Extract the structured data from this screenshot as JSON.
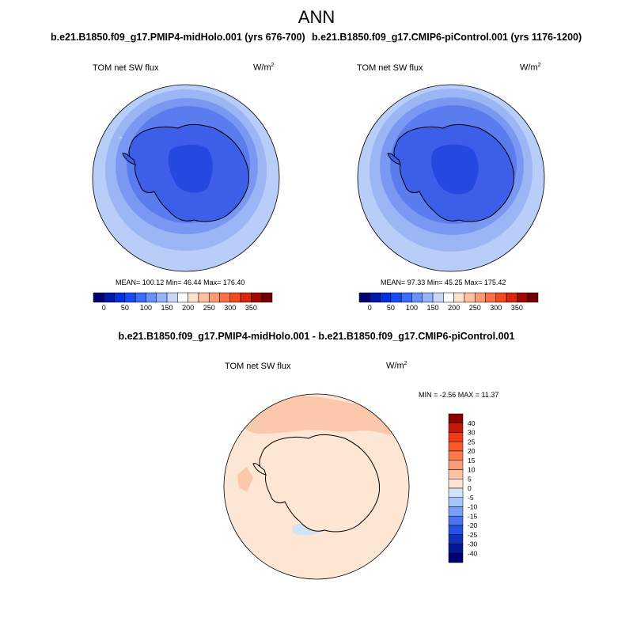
{
  "main_title": "ANN",
  "panels": [
    {
      "title": "b.e21.B1850.f09_g17.PMIP4-midHolo.001 (yrs 676-700)",
      "variable": "TOM net SW flux",
      "units_base": "W/m",
      "units_exp": "2",
      "stats": "MEAN= 100.12  Min=  46.44  Max= 176.40"
    },
    {
      "title": "b.e21.B1850.f09_g17.CMIP6-piControl.001 (yrs 1176-1200)",
      "variable": "TOM net SW flux",
      "units_base": "W/m",
      "units_exp": "2",
      "stats": "MEAN=  97.33  Min=  45.25  Max= 175.42"
    }
  ],
  "difference": {
    "title": "b.e21.B1850.f09_g17.PMIP4-midHolo.001 - b.e21.B1850.f09_g17.CMIP6-piControl.001",
    "variable": "TOM net SW flux",
    "units_base": "W/m",
    "units_exp": "2",
    "stats": "MIN =  -2.56 MAX =  11.37"
  },
  "colorbar_main": {
    "ticks": [
      "0",
      "50",
      "100",
      "150",
      "200",
      "250",
      "300",
      "350"
    ],
    "colors": [
      "#000070",
      "#0018a8",
      "#0030d8",
      "#1848f0",
      "#3c6cf8",
      "#6890f8",
      "#98b4f8",
      "#c8d8fa",
      "#ffffff",
      "#fde0c8",
      "#fcc0a0",
      "#fa9a70",
      "#f87048",
      "#f04a20",
      "#d82810",
      "#a00800",
      "#700000"
    ]
  },
  "colorbar_diff": {
    "ticks": [
      "40",
      "30",
      "25",
      "20",
      "15",
      "10",
      "5",
      "0",
      "-5",
      "-10",
      "-15",
      "-20",
      "-25",
      "-30",
      "-40"
    ],
    "colors": [
      "#8a0000",
      "#c81808",
      "#ee3c14",
      "#fa5a28",
      "#fa7a4c",
      "#fb9c78",
      "#fdc2a4",
      "#fde6d4",
      "#d0e4f8",
      "#a8c4f6",
      "#7c9ef4",
      "#4e74f0",
      "#2850e0",
      "#1030c0",
      "#001890",
      "#000070"
    ]
  },
  "map_colors": {
    "level_90": "#b8cdf8",
    "level_100": "#9bb6f5",
    "level_110": "#7a98f2",
    "level_120": "#5a7cee",
    "level_130": "#3c5ee8",
    "level_150": "#2448e0",
    "level_170": "#1a38d0",
    "diff_base": "#fde6d4",
    "diff_pos": "#fcc8ac",
    "diff_neg": "#d0e4f8"
  }
}
